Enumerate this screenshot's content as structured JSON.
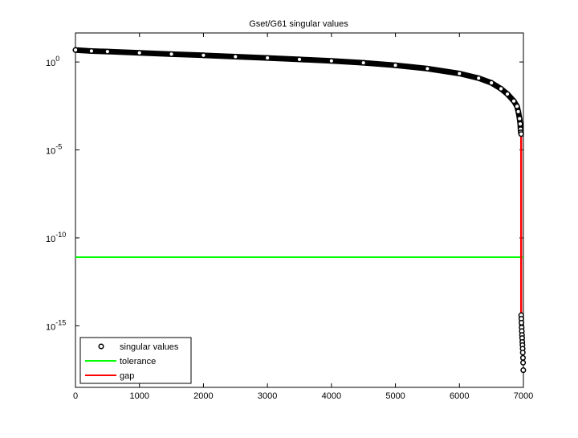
{
  "chart_data": {
    "type": "scatter",
    "title": "Gset/G61 singular values",
    "xlabel": "",
    "ylabel": "",
    "xlim": [
      0,
      7000
    ],
    "ylim": [
      3.16e-19,
      44.7
    ],
    "yscale": "log",
    "grid": false,
    "legend_position": "bottom-left",
    "x_ticks": [
      0,
      1000,
      2000,
      3000,
      4000,
      5000,
      6000,
      7000
    ],
    "x_tick_labels": [
      "0",
      "1000",
      "2000",
      "3000",
      "4000",
      "5000",
      "6000",
      "7000"
    ],
    "y_ticks_exp": [
      0,
      -5,
      -10,
      -15
    ],
    "y_tick_labels": [
      {
        "base": "10",
        "exp": "0"
      },
      {
        "base": "10",
        "exp": "-5"
      },
      {
        "base": "10",
        "exp": "-10"
      },
      {
        "base": "10",
        "exp": "-15"
      }
    ],
    "series": [
      {
        "name": "singular values",
        "color": "#000000",
        "marker": "circle",
        "x": [
          1,
          250,
          500,
          1000,
          1500,
          2000,
          2500,
          3000,
          3500,
          4000,
          4500,
          5000,
          5500,
          6000,
          6300,
          6500,
          6650,
          6750,
          6850,
          6900,
          6920,
          6940,
          6950,
          6955,
          6960,
          6965,
          6966,
          6968,
          6970,
          6973,
          6975,
          6978,
          6980,
          6983,
          6985,
          6988,
          6990,
          6993,
          6995,
          6998
        ],
        "y": [
          4.8,
          4.2,
          3.9,
          3.3,
          2.8,
          2.4,
          2.0,
          1.7,
          1.4,
          1.15,
          0.9,
          0.65,
          0.42,
          0.22,
          0.12,
          0.065,
          0.03,
          0.015,
          0.006,
          0.003,
          0.0015,
          0.0006,
          0.0003,
          0.00015,
          0.0001,
          8e-05,
          4e-15,
          2.5e-15,
          1.5e-15,
          8e-16,
          5e-16,
          3e-16,
          2e-16,
          1.2e-16,
          8e-17,
          5e-17,
          3e-17,
          1.5e-17,
          8e-18,
          3e-18
        ]
      },
      {
        "name": "tolerance",
        "color": "#00ff00",
        "type": "line",
        "x": [
          0,
          7000
        ],
        "y": [
          8e-12,
          8e-12
        ]
      },
      {
        "name": "gap",
        "color": "#ff0000",
        "type": "line",
        "x": [
          6965,
          6965
        ],
        "y": [
          8e-05,
          4e-15
        ]
      }
    ]
  }
}
